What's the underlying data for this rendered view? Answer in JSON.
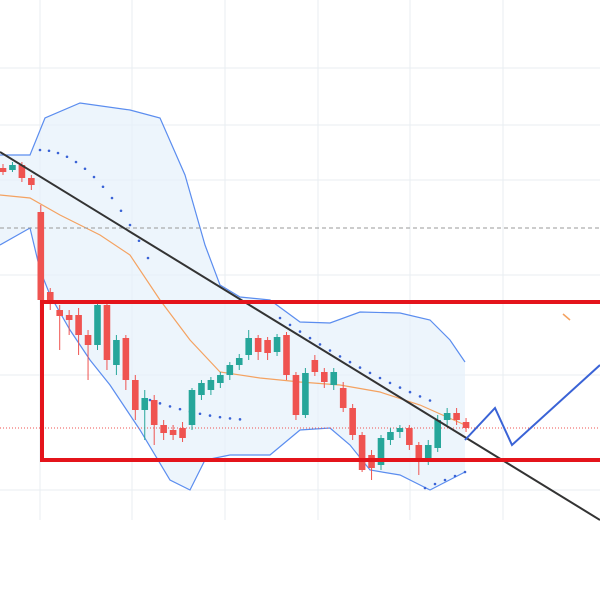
{
  "chart_data": {
    "type": "candlestick",
    "ylim": [
      0,
      600
    ],
    "up_color": "#26a69a",
    "down_color": "#ef5350",
    "open": [
      432,
      430,
      435,
      422,
      388,
      308,
      290,
      285,
      285,
      265,
      255,
      295,
      235,
      262,
      220,
      190,
      200,
      175,
      170,
      172,
      175,
      205,
      210,
      217,
      225,
      235,
      245,
      262,
      260,
      248,
      265,
      225,
      185,
      240,
      228,
      215,
      212,
      192,
      165,
      145,
      135,
      160,
      168,
      172,
      155,
      140,
      152,
      180,
      187,
      178
    ],
    "high": [
      436,
      438,
      438,
      425,
      395,
      312,
      295,
      290,
      292,
      270,
      300,
      300,
      265,
      265,
      225,
      210,
      205,
      180,
      175,
      178,
      212,
      220,
      223,
      228,
      238,
      246,
      270,
      265,
      263,
      266,
      268,
      228,
      232,
      245,
      232,
      232,
      218,
      196,
      168,
      150,
      165,
      172,
      175,
      175,
      158,
      160,
      185,
      192,
      192,
      182
    ],
    "low": [
      425,
      428,
      418,
      410,
      295,
      290,
      250,
      265,
      245,
      220,
      250,
      230,
      225,
      210,
      180,
      160,
      155,
      160,
      160,
      158,
      170,
      200,
      205,
      212,
      220,
      230,
      240,
      240,
      240,
      244,
      220,
      180,
      182,
      224,
      212,
      210,
      188,
      160,
      128,
      120,
      130,
      155,
      162,
      150,
      125,
      135,
      148,
      175,
      175,
      168
    ],
    "close": [
      428,
      435,
      422,
      415,
      300,
      300,
      284,
      280,
      265,
      255,
      295,
      240,
      260,
      220,
      190,
      202,
      175,
      167,
      165,
      162,
      210,
      217,
      220,
      225,
      235,
      242,
      262,
      248,
      247,
      263,
      225,
      185,
      227,
      228,
      218,
      228,
      192,
      165,
      130,
      132,
      162,
      168,
      172,
      155,
      140,
      155,
      180,
      187,
      180,
      172
    ]
  }
}
